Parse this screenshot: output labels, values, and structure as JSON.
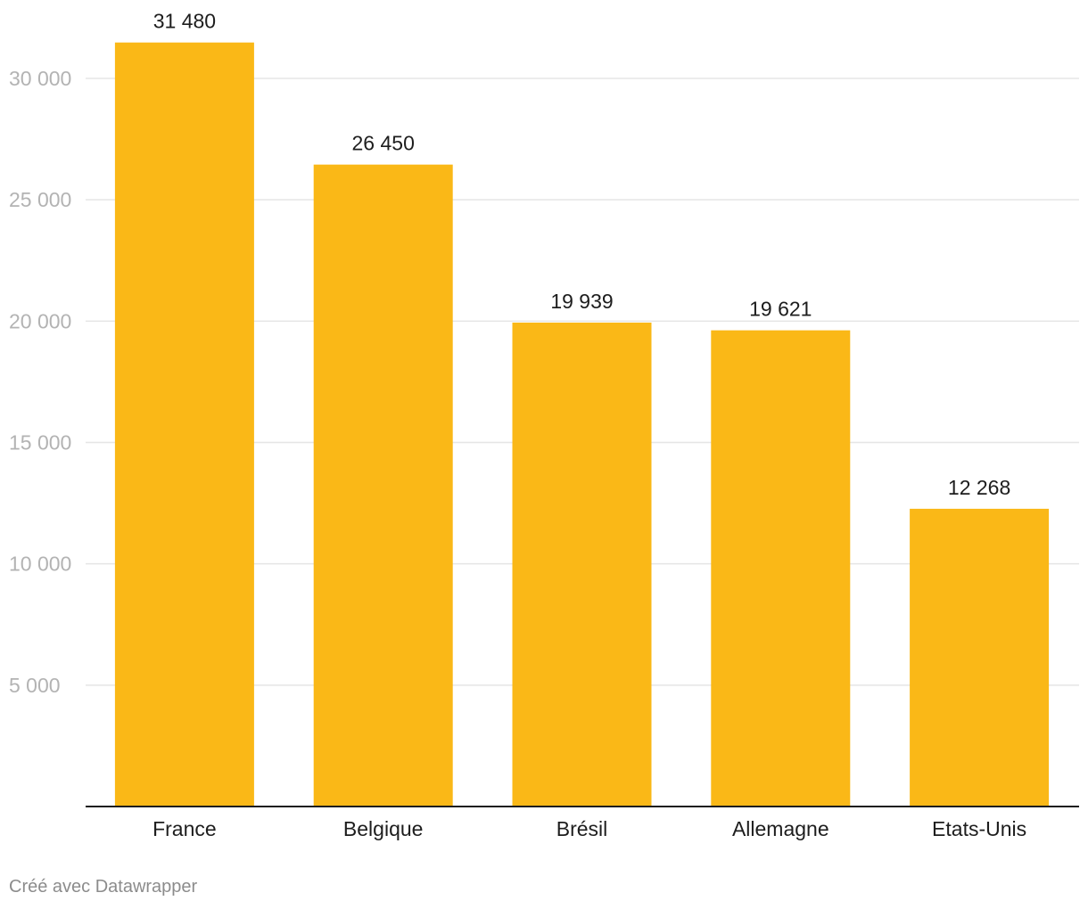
{
  "chart_data": {
    "type": "bar",
    "title": "",
    "xlabel": "",
    "ylabel": "",
    "categories": [
      "France",
      "Belgique",
      "Brésil",
      "Allemagne",
      "Etats-Unis"
    ],
    "values": [
      31480,
      26450,
      19939,
      19621,
      12268
    ],
    "value_labels": [
      "31 480",
      "26 450",
      "19 939",
      "19 621",
      "12 268"
    ],
    "ylim": [
      0,
      33000
    ],
    "y_ticks": [
      5000,
      10000,
      15000,
      20000,
      25000,
      30000
    ],
    "y_tick_labels": [
      "5 000",
      "10 000",
      "15 000",
      "20 000",
      "25 000",
      "30 000"
    ],
    "grid": true,
    "bar_color": "#fab817",
    "gridline_color": "#e5e5e5",
    "axis_color": "#1d1d1d"
  },
  "footer": {
    "credit": "Créé avec Datawrapper"
  }
}
